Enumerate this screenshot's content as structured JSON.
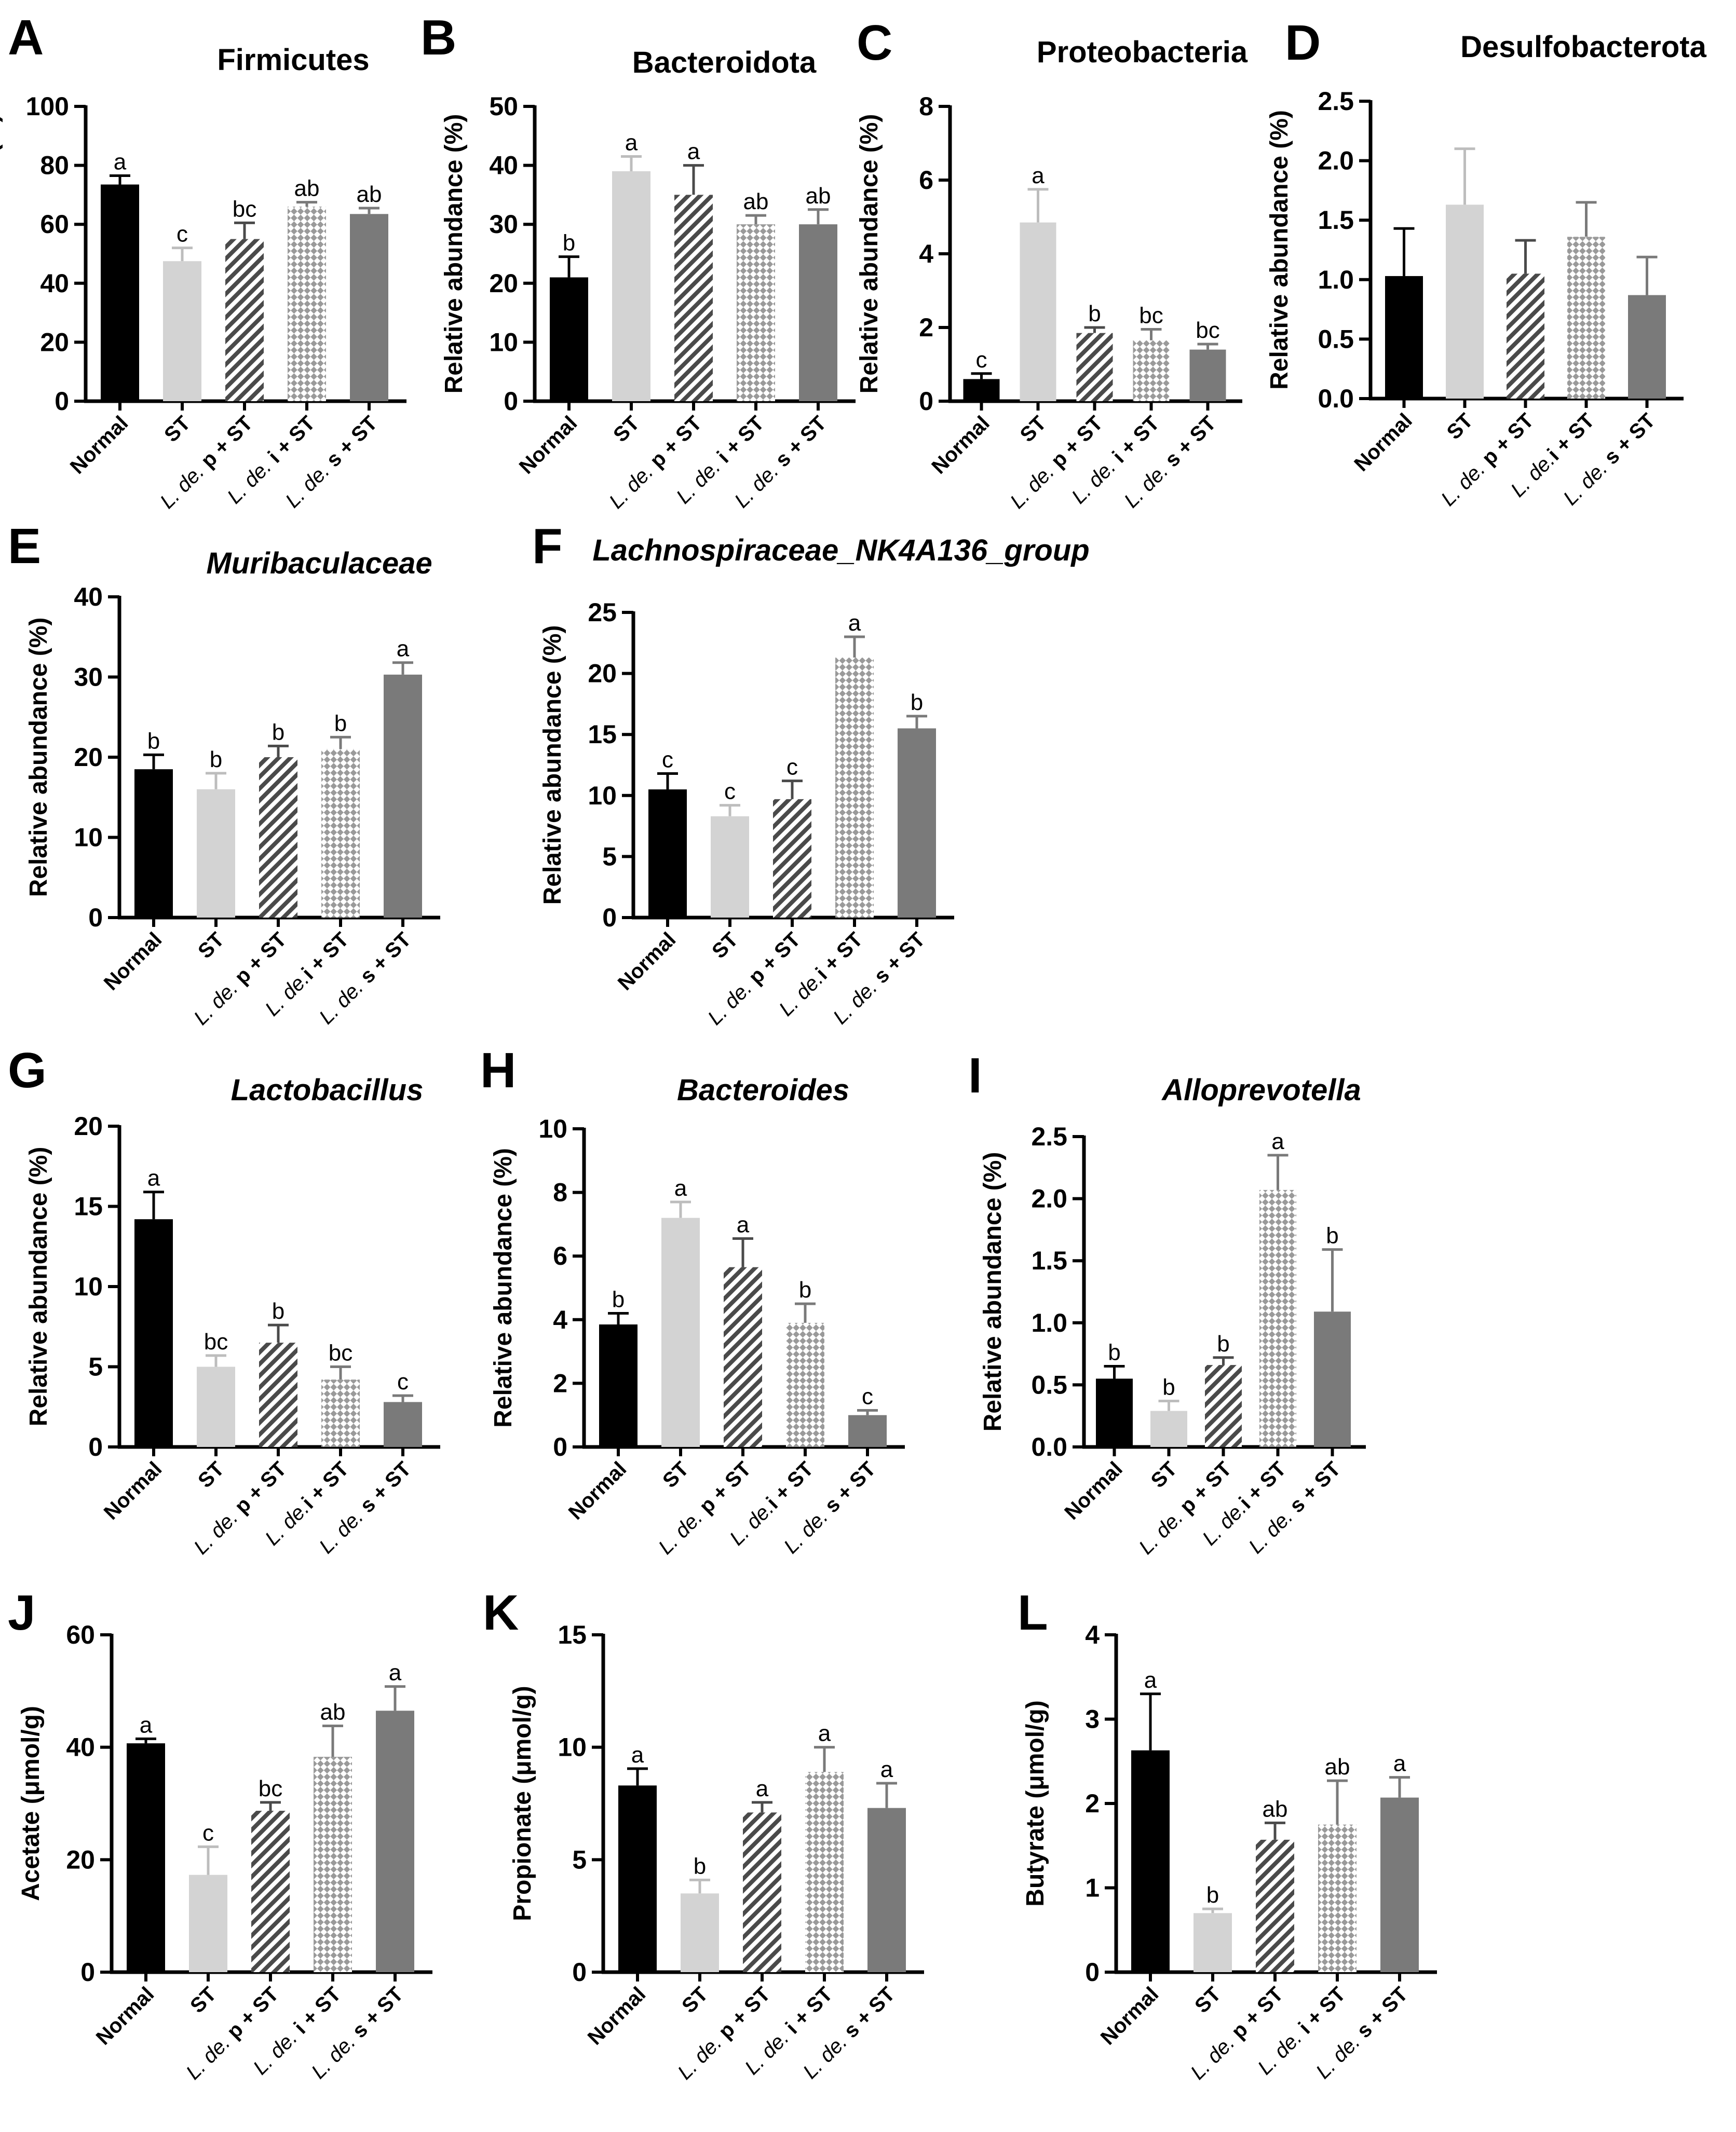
{
  "palette": {
    "normal": "#000000",
    "st": "#d3d3d3",
    "p_st": "#4a4a4a",
    "i_st": "#bdbdbd",
    "s_st": "#7a7a7a"
  },
  "chart_data": [
    {
      "id": "A",
      "type": "bar",
      "title": "Firmicutes",
      "title_italic": false,
      "ylabel": "Relative abundance (%)",
      "ylim": [
        0,
        100
      ],
      "yticks": [
        0,
        20,
        40,
        60,
        80,
        100
      ],
      "categories": [
        "Normal",
        "ST",
        "L. de. p + ST",
        "L. de. i + ST",
        "L. de. s + ST"
      ],
      "values": [
        73.5,
        47.5,
        55,
        66,
        63.5
      ],
      "errors": [
        3,
        4.5,
        5.5,
        1.5,
        2
      ],
      "letters": [
        "a",
        "c",
        "bc",
        "ab",
        "ab"
      ]
    },
    {
      "id": "B",
      "type": "bar",
      "title": "Bacteroidota",
      "title_italic": false,
      "ylabel": "Relative abundance (%)",
      "ylim": [
        0,
        50
      ],
      "yticks": [
        0,
        10,
        20,
        30,
        40,
        50
      ],
      "categories": [
        "Normal",
        "ST",
        "L. de. p + ST",
        "L. de. i + ST",
        "L. de. s + ST"
      ],
      "values": [
        21,
        39,
        35,
        30,
        30
      ],
      "errors": [
        3.5,
        2.5,
        5,
        1.5,
        2.5
      ],
      "letters": [
        "b",
        "a",
        "a",
        "ab",
        "ab"
      ]
    },
    {
      "id": "C",
      "type": "bar",
      "title": "Proteobacteria",
      "title_italic": false,
      "ylabel": "Relative abundance (%)",
      "ylim": [
        0,
        8
      ],
      "yticks": [
        0,
        2,
        4,
        6,
        8
      ],
      "categories": [
        "Normal",
        "ST",
        "L. de. p + ST",
        "L. de. i + ST",
        "L. de. s + ST"
      ],
      "values": [
        0.6,
        4.85,
        1.85,
        1.65,
        1.4
      ],
      "errors": [
        0.15,
        0.9,
        0.15,
        0.3,
        0.15
      ],
      "letters": [
        "c",
        "a",
        "b",
        "bc",
        "bc"
      ]
    },
    {
      "id": "D",
      "type": "bar",
      "title": "Desulfobacterota",
      "title_italic": false,
      "ylabel": "Relative abundance (%)",
      "ylim": [
        0,
        2.5
      ],
      "yticks": [
        0.0,
        0.5,
        1.0,
        1.5,
        2.0,
        2.5
      ],
      "ytick_labels": [
        "0.0",
        "0.5",
        "1.0",
        "1.5",
        "2.0",
        "2.5"
      ],
      "categories": [
        "Normal",
        "ST",
        "L. de. p + ST",
        "L. de.i + ST",
        "L. de. s + ST"
      ],
      "values": [
        1.03,
        1.63,
        1.05,
        1.36,
        0.87
      ],
      "errors": [
        0.4,
        0.47,
        0.28,
        0.29,
        0.32
      ],
      "letters": [
        "",
        "",
        "",
        "",
        ""
      ]
    },
    {
      "id": "E",
      "type": "bar",
      "title": "Muribaculaceae",
      "title_italic": true,
      "ylabel": "Relative abundance (%)",
      "ylim": [
        0,
        40
      ],
      "yticks": [
        0,
        10,
        20,
        30,
        40
      ],
      "categories": [
        "Normal",
        "ST",
        "L. de. p + ST",
        "L. de.i + ST",
        "L. de. s + ST"
      ],
      "values": [
        18.5,
        16,
        20,
        21,
        30.3
      ],
      "errors": [
        1.8,
        2,
        1.4,
        1.5,
        1.5
      ],
      "letters": [
        "b",
        "b",
        "b",
        "b",
        "a"
      ]
    },
    {
      "id": "F",
      "type": "bar",
      "title": "Lachnospiraceae_NK4A136_group",
      "title_italic": true,
      "ylabel": "Relative abundance (%)",
      "ylim": [
        0,
        25
      ],
      "yticks": [
        0,
        5,
        10,
        15,
        20,
        25
      ],
      "categories": [
        "Normal",
        "ST",
        "L. de. p + ST",
        "L. de.i + ST",
        "L. de. s + ST"
      ],
      "values": [
        10.5,
        8.3,
        9.7,
        21.3,
        15.5
      ],
      "errors": [
        1.3,
        0.9,
        1.5,
        1.7,
        1.0
      ],
      "letters": [
        "c",
        "c",
        "c",
        "a",
        "b"
      ]
    },
    {
      "id": "G",
      "type": "bar",
      "title": "Lactobacillus",
      "title_italic": true,
      "ylabel": "Relative abundance (%)",
      "ylim": [
        0,
        20
      ],
      "yticks": [
        0,
        5,
        10,
        15,
        20
      ],
      "categories": [
        "Normal",
        "ST",
        "L. de. p + ST",
        "L. de.i + ST",
        "L. de. s + ST"
      ],
      "values": [
        14.2,
        5.0,
        6.5,
        4.2,
        2.8
      ],
      "errors": [
        1.7,
        0.7,
        1.1,
        0.8,
        0.4
      ],
      "letters": [
        "a",
        "bc",
        "b",
        "bc",
        "c"
      ]
    },
    {
      "id": "H",
      "type": "bar",
      "title": "Bacteroides",
      "title_italic": true,
      "ylabel": "Relative abundance (%)",
      "ylim": [
        0,
        10
      ],
      "yticks": [
        0,
        2,
        4,
        6,
        8,
        10
      ],
      "categories": [
        "Normal",
        "ST",
        "L. de. p + ST",
        "L. de.i + ST",
        "L. de. s + ST"
      ],
      "values": [
        3.85,
        7.2,
        5.65,
        3.9,
        1.0
      ],
      "errors": [
        0.35,
        0.5,
        0.9,
        0.6,
        0.15
      ],
      "letters": [
        "b",
        "a",
        "a",
        "b",
        "c"
      ]
    },
    {
      "id": "I",
      "type": "bar",
      "title": "Alloprevotella",
      "title_italic": true,
      "ylabel": "Relative abundance (%)",
      "ylim": [
        0,
        2.5
      ],
      "yticks": [
        0.0,
        0.5,
        1.0,
        1.5,
        2.0,
        2.5
      ],
      "ytick_labels": [
        "0.0",
        "0.5",
        "1.0",
        "1.5",
        "2.0",
        "2.5"
      ],
      "categories": [
        "Normal",
        "ST",
        "L. de. p + ST",
        "L. de.i + ST",
        "L. de. s + ST"
      ],
      "values": [
        0.55,
        0.29,
        0.66,
        2.07,
        1.09
      ],
      "errors": [
        0.1,
        0.08,
        0.06,
        0.28,
        0.5
      ],
      "letters": [
        "b",
        "b",
        "b",
        "a",
        "b"
      ]
    },
    {
      "id": "J",
      "type": "bar",
      "title": "",
      "title_italic": false,
      "ylabel": "Acetate (μmol/g)",
      "ylim": [
        0,
        60
      ],
      "yticks": [
        0,
        20,
        40,
        60
      ],
      "categories": [
        "Normal",
        "ST",
        "L. de. p + ST",
        "L. de. i + ST",
        "L. de. s + ST"
      ],
      "values": [
        40.7,
        17.3,
        28.7,
        38.3,
        46.5
      ],
      "errors": [
        0.8,
        5,
        1.5,
        5.5,
        4.3
      ],
      "letters": [
        "a",
        "c",
        "bc",
        "ab",
        "a"
      ]
    },
    {
      "id": "K",
      "type": "bar",
      "title": "",
      "title_italic": false,
      "ylabel": "Propionate (μmol/g)",
      "ylim": [
        0,
        15
      ],
      "yticks": [
        0,
        5,
        10,
        15
      ],
      "categories": [
        "Normal",
        "ST",
        "L. de. p + ST",
        "L. de. i + ST",
        "L. de. s + ST"
      ],
      "values": [
        8.3,
        3.5,
        7.1,
        8.9,
        7.3
      ],
      "errors": [
        0.75,
        0.6,
        0.45,
        1.1,
        1.1
      ],
      "letters": [
        "a",
        "b",
        "a",
        "a",
        "a"
      ]
    },
    {
      "id": "L",
      "type": "bar",
      "title": "",
      "title_italic": false,
      "ylabel": "Butyrate (μmol/g)",
      "ylim": [
        0,
        4
      ],
      "yticks": [
        0,
        1,
        2,
        3,
        4
      ],
      "categories": [
        "Normal",
        "ST",
        "L. de. p + ST",
        "L. de. i + ST",
        "L. de. s + ST"
      ],
      "values": [
        2.63,
        0.7,
        1.57,
        1.75,
        2.07
      ],
      "errors": [
        0.67,
        0.05,
        0.2,
        0.52,
        0.24
      ],
      "letters": [
        "a",
        "b",
        "ab",
        "ab",
        "a"
      ]
    }
  ]
}
